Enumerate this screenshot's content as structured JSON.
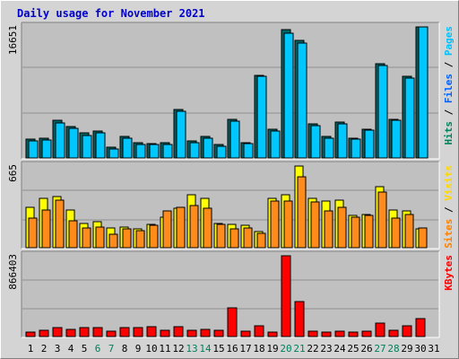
{
  "chart_data": [
    {
      "type": "bar",
      "panel": "pages-files-hits",
      "title": "Daily usage for November 2021",
      "y_max_label": "16651",
      "legend": [
        {
          "label": "Pages",
          "color": "#00c0ff"
        },
        {
          "label": "Files",
          "color": "#0060ff"
        },
        {
          "label": "Hits",
          "color": "#00805c"
        }
      ],
      "series": [
        {
          "name": "Hits",
          "color": "#006666",
          "values": [
            2370,
            2470,
            4780,
            4030,
            3140,
            3380,
            1340,
            2750,
            1930,
            1860,
            1930,
            6160,
            2170,
            2730,
            1690,
            4900,
            1960,
            10540,
            3650,
            16300,
            14890,
            4320,
            2780,
            4600,
            2560,
            3650,
            12010,
            4960,
            10390,
            16651
          ]
        },
        {
          "name": "Files",
          "color": "#00c8ff",
          "values": [
            2200,
            2300,
            4500,
            3800,
            2900,
            3150,
            1150,
            2550,
            1760,
            1700,
            1750,
            5880,
            1960,
            2520,
            1520,
            4680,
            1800,
            10360,
            3420,
            15800,
            14600,
            4100,
            2550,
            4350,
            2400,
            3480,
            11750,
            4750,
            10150,
            16651
          ]
        }
      ]
    },
    {
      "type": "bar",
      "panel": "visits-sites",
      "y_max_label": "665",
      "legend": [
        {
          "label": "Visits",
          "color": "#ffd700"
        },
        {
          "label": "Sites",
          "color": "#ff8000"
        }
      ],
      "series": [
        {
          "name": "Visits",
          "color": "#ffff00",
          "values": [
            330,
            400,
            420,
            310,
            200,
            210,
            160,
            170,
            150,
            190,
            250,
            320,
            430,
            400,
            200,
            190,
            180,
            130,
            400,
            430,
            665,
            400,
            380,
            390,
            260,
            270,
            500,
            310,
            300,
            150
          ]
        },
        {
          "name": "Sites",
          "color": "#ff8c1a",
          "values": [
            240,
            310,
            390,
            220,
            160,
            170,
            110,
            150,
            140,
            180,
            300,
            330,
            340,
            320,
            190,
            150,
            160,
            120,
            380,
            380,
            580,
            370,
            300,
            330,
            250,
            260,
            450,
            240,
            270,
            160
          ]
        }
      ]
    },
    {
      "type": "bar",
      "panel": "kbytes",
      "y_max_label": "866403",
      "legend": [
        {
          "label": "KBytes",
          "color": "#ff0000"
        }
      ],
      "series": [
        {
          "name": "KBytes",
          "color": "#ff0000",
          "values": [
            50000,
            65000,
            95000,
            80000,
            95000,
            95000,
            60000,
            100000,
            95000,
            105000,
            70000,
            105000,
            70000,
            80000,
            70000,
            310000,
            55000,
            120000,
            50000,
            866403,
            380000,
            55000,
            50000,
            55000,
            45000,
            55000,
            140000,
            65000,
            120000,
            190000
          ]
        }
      ]
    }
  ],
  "x_axis": {
    "labels": [
      "1",
      "2",
      "3",
      "4",
      "5",
      "6",
      "7",
      "8",
      "9",
      "10",
      "11",
      "12",
      "13",
      "14",
      "15",
      "16",
      "17",
      "18",
      "19",
      "20",
      "21",
      "22",
      "23",
      "24",
      "25",
      "26",
      "27",
      "28",
      "29",
      "30",
      "31"
    ],
    "weekend_days": [
      "6",
      "7",
      "13",
      "14",
      "20",
      "21",
      "27",
      "28"
    ],
    "weekday_color": "#000000",
    "weekend_color": "#00805c"
  },
  "colors": {
    "background": "#d4d4d4",
    "panel": "#c0c0c0",
    "title": "#0000cc"
  }
}
